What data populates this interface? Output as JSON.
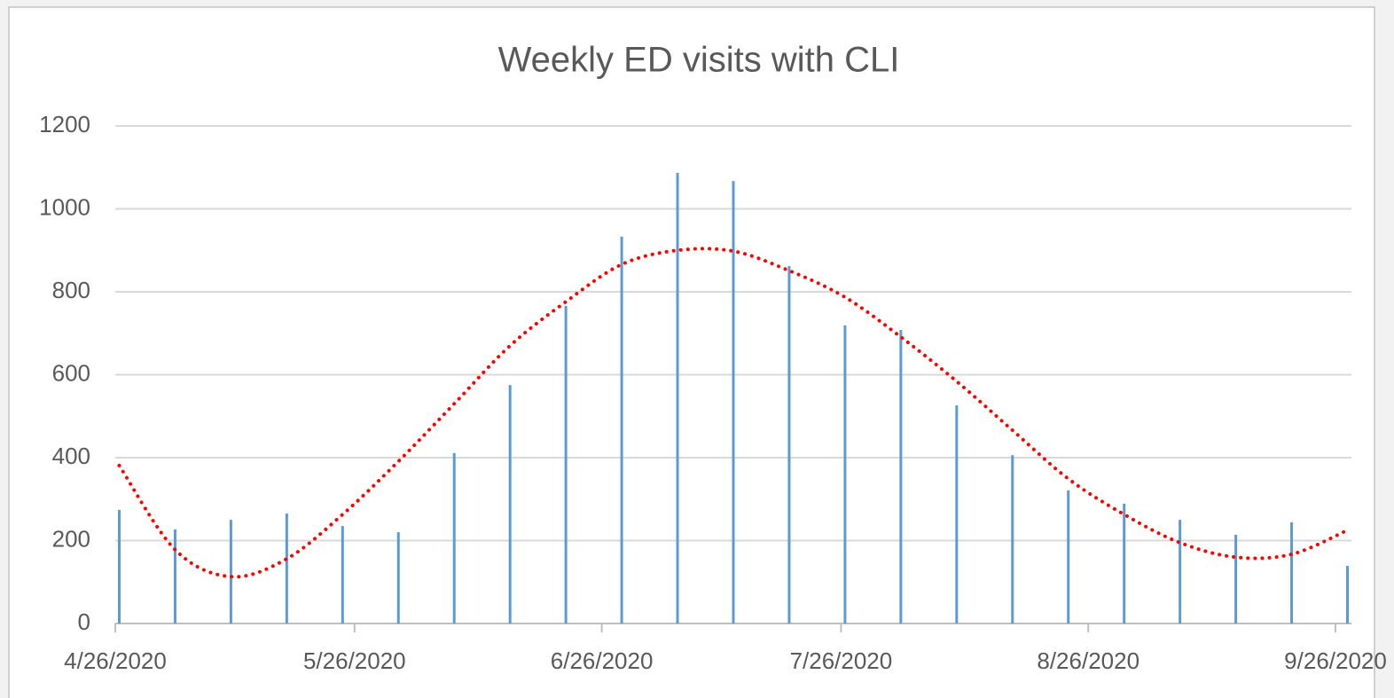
{
  "chart_data": {
    "type": "bar",
    "title": "Weekly ED visits with CLI",
    "x": [
      "4/26/2020",
      "5/3/2020",
      "5/10/2020",
      "5/17/2020",
      "5/24/2020",
      "5/31/2020",
      "6/7/2020",
      "6/14/2020",
      "6/21/2020",
      "6/28/2020",
      "7/5/2020",
      "7/12/2020",
      "7/19/2020",
      "7/26/2020",
      "8/2/2020",
      "8/9/2020",
      "8/16/2020",
      "8/23/2020",
      "8/30/2020",
      "9/6/2020",
      "9/13/2020",
      "9/20/2020",
      "9/27/2020"
    ],
    "values": [
      274,
      227,
      250,
      265,
      235,
      220,
      411,
      575,
      766,
      933,
      1087,
      1067,
      862,
      719,
      708,
      526,
      406,
      321,
      289,
      250,
      214,
      244,
      139
    ],
    "color": "#5b9bd5",
    "trendline": {
      "color": "#ff0000",
      "values": [
        381,
        178,
        113,
        156,
        263,
        391,
        530,
        670,
        776,
        866,
        900,
        898,
        851,
        787,
        691,
        584,
        466,
        349,
        263,
        195,
        160,
        167,
        225
      ]
    },
    "xlim": [
      "4/26/2020",
      "9/28/2020"
    ],
    "xticks": [
      "4/26/2020",
      "5/26/2020",
      "6/26/2020",
      "7/26/2020",
      "8/26/2020",
      "9/26/2020"
    ],
    "ylim": [
      0,
      1200
    ],
    "yticks": [
      0,
      200,
      400,
      600,
      800,
      1000,
      1200
    ],
    "grid": true
  }
}
